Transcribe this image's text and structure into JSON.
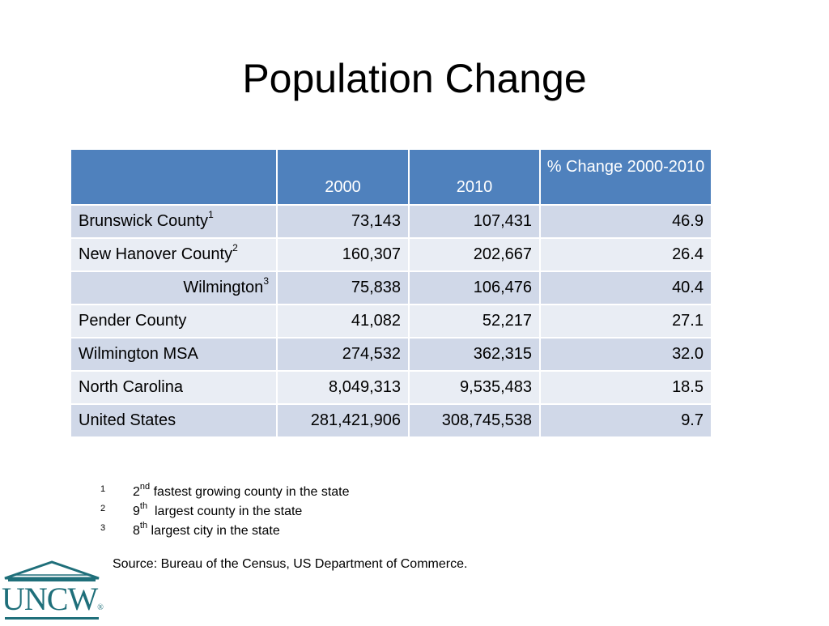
{
  "slide": {
    "title": "Population Change"
  },
  "table": {
    "headers": [
      "",
      "2000",
      "2010",
      "% Change 2000-2010"
    ],
    "rows": [
      {
        "label": "Brunswick County",
        "sup": "1",
        "y2000": "73,143",
        "y2010": "107,431",
        "change": "46.9"
      },
      {
        "label": "New Hanover County",
        "sup": "2",
        "y2000": "160,307",
        "y2010": "202,667",
        "change": "26.4"
      },
      {
        "label": "Wilmington",
        "sup": "3",
        "y2000": "75,838",
        "y2010": "106,476",
        "change": "40.4"
      },
      {
        "label": "Pender County",
        "sup": "",
        "y2000": "41,082",
        "y2010": "52,217",
        "change": "27.1"
      },
      {
        "label": "Wilmington MSA",
        "sup": "",
        "y2000": "274,532",
        "y2010": "362,315",
        "change": "32.0"
      },
      {
        "label": "North Carolina",
        "sup": "",
        "y2000": "8,049,313",
        "y2010": "9,535,483",
        "change": "18.5"
      },
      {
        "label": "United States",
        "sup": "",
        "y2000": "281,421,906",
        "y2010": "308,745,538",
        "change": "9.7"
      }
    ]
  },
  "footnotes": [
    {
      "num": "1",
      "rank": "2",
      "ord": "nd",
      "text": " fastest growing county in the state"
    },
    {
      "num": "2",
      "rank": "9",
      "ord": "th",
      "text": "  largest county in the state"
    },
    {
      "num": "3",
      "rank": "8",
      "ord": "th",
      "text": " largest city in the state"
    }
  ],
  "source": "Source: Bureau of the Census, US Department of Commerce.",
  "logo": {
    "text": "UNCW",
    "mark": "®",
    "color": "#1f6f7a"
  }
}
